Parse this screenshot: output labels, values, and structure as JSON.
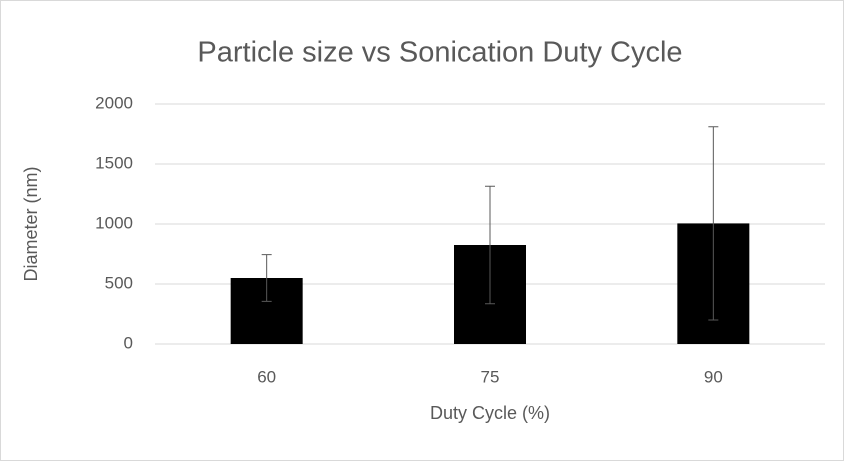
{
  "chart_data": {
    "type": "bar",
    "title": "Particle size vs Sonication Duty Cycle",
    "x_label": "Duty Cycle (%)",
    "y_label": "Diameter (nm)",
    "categories": [
      "60",
      "75",
      "90"
    ],
    "values": [
      550,
      825,
      1005
    ],
    "errors": [
      195,
      490,
      805
    ],
    "color": "#000000",
    "ylim": [
      0,
      2000
    ],
    "yticks": [
      0,
      500,
      1000,
      1500,
      2000
    ],
    "grid": true
  }
}
